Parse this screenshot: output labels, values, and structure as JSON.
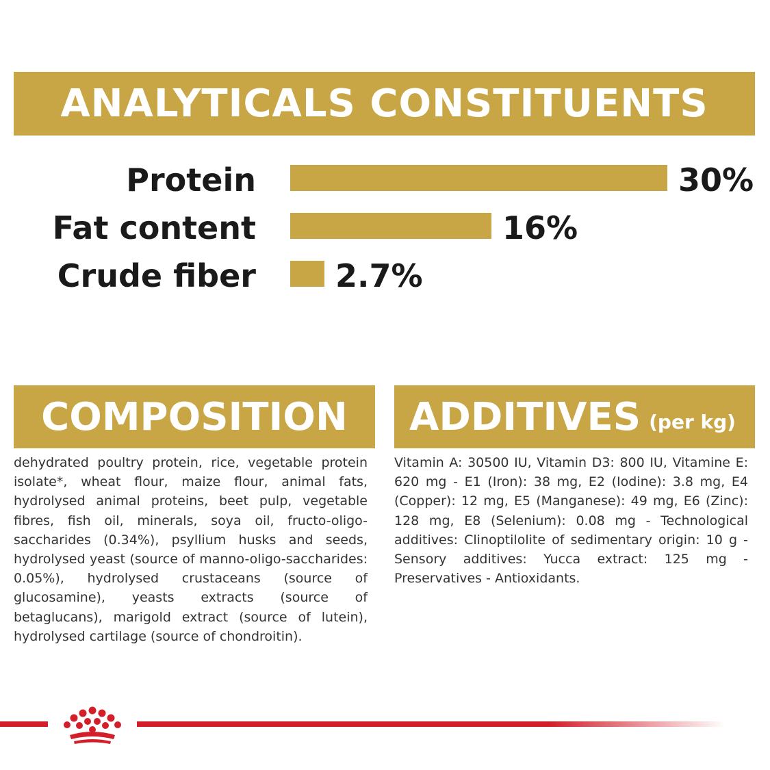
{
  "analytics": {
    "title": "ANALYTICALS CONSTITUENTS"
  },
  "chart_data": {
    "type": "bar",
    "orientation": "horizontal",
    "title": "ANALYTICALS CONSTITUENTS",
    "unit": "%",
    "categories": [
      "Protein",
      "Fat content",
      "Crude fiber"
    ],
    "values": [
      30,
      16,
      2.7
    ],
    "value_labels": [
      "30%",
      "16%",
      "2.7%"
    ],
    "xlim": [
      0,
      30
    ],
    "grid": false,
    "bar_color": "#c8a646"
  },
  "composition": {
    "title": "COMPOSITION",
    "text": "dehydrated poultry protein, rice, vegetable protein isolate*, wheat flour, maize flour, animal fats, hydrolysed animal proteins, beet pulp, vegetable fibres, fish oil, minerals, soya oil, fructo-oligo-saccharides (0.34%), psyllium husks and seeds, hydrolysed yeast (source of manno-oligo-saccharides: 0.05%), hydrolysed crustaceans (source of glucosamine), yeasts extracts (source of betaglucans), marigold extract (source of lutein), hydrolysed cartilage (source of chondroitin)."
  },
  "additives": {
    "title": "ADDITIVES",
    "subtitle": "(per kg)",
    "text": "Vitamin A: 30500 IU, Vitamin D3: 800 IU, Vitamine E: 620 mg - E1 (Iron): 38 mg, E2 (Iodine): 3.8 mg, E4 (Copper): 12 mg, E5 (Manganese): 49 mg, E6 (Zinc): 128 mg, E8 (Selenium): 0.08 mg - Technological additives: Clinoptilolite of sedimentary origin: 10 g - Sensory additives: Yucca extract: 125 mg - Preservatives - Antioxidants."
  },
  "colors": {
    "gold": "#c8a646",
    "brand_red": "#d31f2a"
  },
  "icons": {
    "brand_logo": "crown-logo-icon"
  }
}
